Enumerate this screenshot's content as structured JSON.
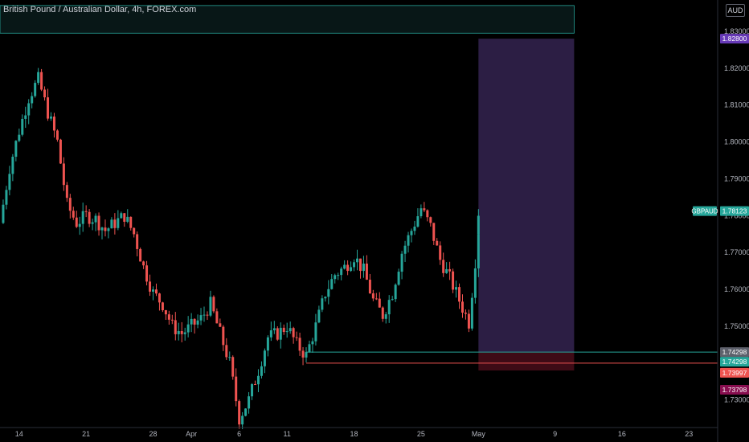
{
  "header": {
    "symbol_title": "British Pound / Australian Dollar, 4h, FOREX.com",
    "currency": "AUD"
  },
  "chart_data": {
    "type": "candlestick",
    "title": "British Pound / Australian Dollar, 4h, FOREX.com",
    "ylim": [
      1.7225,
      1.8385
    ],
    "y_ticks": [
      1.73,
      1.74,
      1.75,
      1.76,
      1.77,
      1.78,
      1.79,
      1.8,
      1.81,
      1.82,
      1.83
    ],
    "y_tick_labels": [
      "1.73000",
      "1.74000",
      "1.75000",
      "1.76000",
      "1.77000",
      "1.78000",
      "1.79000",
      "1.80000",
      "1.81000",
      "1.82000",
      "1.83000"
    ],
    "x_tick_labels": [
      "14",
      "21",
      "28",
      "Apr",
      "6",
      "11",
      "18",
      "25",
      "May",
      "9",
      "16",
      "23"
    ],
    "x_domain": [
      "2025-03-12",
      "2025-05-26"
    ],
    "x_ticks": [
      "2025-03-14",
      "2025-03-21",
      "2025-03-28",
      "2025-04-01",
      "2025-04-06",
      "2025-04-11",
      "2025-04-18",
      "2025-04-25",
      "2025-05-01",
      "2025-05-09",
      "2025-05-16",
      "2025-05-23"
    ],
    "price_path": [
      {
        "date": "2025-03-12",
        "price": 1.778
      },
      {
        "date": "2025-03-13",
        "price": 1.793
      },
      {
        "date": "2025-03-14",
        "price": 1.803
      },
      {
        "date": "2025-03-15",
        "price": 1.812
      },
      {
        "date": "2025-03-16",
        "price": 1.817
      },
      {
        "date": "2025-03-17",
        "price": 1.808
      },
      {
        "date": "2025-03-18",
        "price": 1.8
      },
      {
        "date": "2025-03-19",
        "price": 1.783
      },
      {
        "date": "2025-03-20",
        "price": 1.778
      },
      {
        "date": "2025-03-21",
        "price": 1.78
      },
      {
        "date": "2025-03-22",
        "price": 1.779
      },
      {
        "date": "2025-03-23",
        "price": 1.776
      },
      {
        "date": "2025-03-24",
        "price": 1.778
      },
      {
        "date": "2025-03-25",
        "price": 1.78
      },
      {
        "date": "2025-03-26",
        "price": 1.775
      },
      {
        "date": "2025-03-27",
        "price": 1.766
      },
      {
        "date": "2025-03-28",
        "price": 1.759
      },
      {
        "date": "2025-03-29",
        "price": 1.756
      },
      {
        "date": "2025-03-30",
        "price": 1.75
      },
      {
        "date": "2025-03-31",
        "price": 1.748
      },
      {
        "date": "2025-04-01",
        "price": 1.75
      },
      {
        "date": "2025-04-02",
        "price": 1.752
      },
      {
        "date": "2025-04-03",
        "price": 1.756
      },
      {
        "date": "2025-04-04",
        "price": 1.748
      },
      {
        "date": "2025-04-05",
        "price": 1.74
      },
      {
        "date": "2025-04-06",
        "price": 1.725
      },
      {
        "date": "2025-04-07",
        "price": 1.73
      },
      {
        "date": "2025-04-08",
        "price": 1.738
      },
      {
        "date": "2025-04-09",
        "price": 1.747
      },
      {
        "date": "2025-04-10",
        "price": 1.748
      },
      {
        "date": "2025-04-11",
        "price": 1.75
      },
      {
        "date": "2025-04-12",
        "price": 1.745
      },
      {
        "date": "2025-04-13",
        "price": 1.742
      },
      {
        "date": "2025-04-14",
        "price": 1.75
      },
      {
        "date": "2025-04-15",
        "price": 1.759
      },
      {
        "date": "2025-04-16",
        "price": 1.764
      },
      {
        "date": "2025-04-17",
        "price": 1.766
      },
      {
        "date": "2025-04-18",
        "price": 1.769
      },
      {
        "date": "2025-04-19",
        "price": 1.765
      },
      {
        "date": "2025-04-20",
        "price": 1.757
      },
      {
        "date": "2025-04-21",
        "price": 1.753
      },
      {
        "date": "2025-04-22",
        "price": 1.759
      },
      {
        "date": "2025-04-23",
        "price": 1.77
      },
      {
        "date": "2025-04-24",
        "price": 1.776
      },
      {
        "date": "2025-04-25",
        "price": 1.782
      },
      {
        "date": "2025-04-26",
        "price": 1.777
      },
      {
        "date": "2025-04-27",
        "price": 1.768
      },
      {
        "date": "2025-04-28",
        "price": 1.763
      },
      {
        "date": "2025-04-29",
        "price": 1.757
      },
      {
        "date": "2025-04-30",
        "price": 1.751
      },
      {
        "date": "2025-05-01",
        "price": 1.776
      },
      {
        "date": "2025-05-01",
        "price": 1.781
      }
    ],
    "overlays": [
      {
        "kind": "zone",
        "name": "supply-zone",
        "x": [
          "2025-03-12",
          "2025-05-11"
        ],
        "y": [
          1.8295,
          1.837
        ],
        "color": "#1f5b5b"
      },
      {
        "kind": "zone",
        "name": "profit-zone",
        "x": [
          "2025-05-01",
          "2025-05-11"
        ],
        "y": [
          1.74298,
          1.828
        ],
        "color": "#7e57c2"
      },
      {
        "kind": "zone",
        "name": "stop-zone",
        "x": [
          "2025-05-01",
          "2025-05-11"
        ],
        "y": [
          1.73798,
          1.74298
        ],
        "color": "#b2203f"
      },
      {
        "kind": "hline",
        "name": "entry-line",
        "x_start": "2025-04-13",
        "y": 1.74298,
        "color": "#26a69a"
      },
      {
        "kind": "hline",
        "name": "stop-line",
        "x_start": "2025-04-13",
        "y": 1.73997,
        "color": "#ef5350"
      }
    ],
    "price_labels": [
      {
        "name": "target-price-label",
        "text": "1.82800",
        "value": 1.828,
        "bg": "#673ab7",
        "fg": "#ffffff"
      },
      {
        "name": "last-price-label",
        "text": "1.78123",
        "value": 1.78123,
        "bg": "#26a69a",
        "fg": "#ffffff"
      },
      {
        "name": "entry-price-label",
        "text": "1.74298",
        "value": 1.74298,
        "bg": "#5d606b",
        "fg": "#ffffff"
      },
      {
        "name": "entry-price-label-2",
        "text": "1.74298",
        "value": 1.74298,
        "bg": "#26a69a",
        "fg": "#ffffff"
      },
      {
        "name": "stop-price-label",
        "text": "1.73997",
        "value": 1.73997,
        "bg": "#ef5350",
        "fg": "#ffffff"
      },
      {
        "name": "stop-zone-price-label",
        "text": "1.73798",
        "value": 1.73798,
        "bg": "#880e4f",
        "fg": "#ffffff"
      }
    ],
    "symbol_tag": {
      "text": "GBPAUD",
      "value": 1.78123,
      "bg": "#26a69a"
    },
    "colors": {
      "up": "#26a69a",
      "down": "#ef5350",
      "tick_text": "#b2b5be",
      "axis": "#2a2e39"
    }
  }
}
